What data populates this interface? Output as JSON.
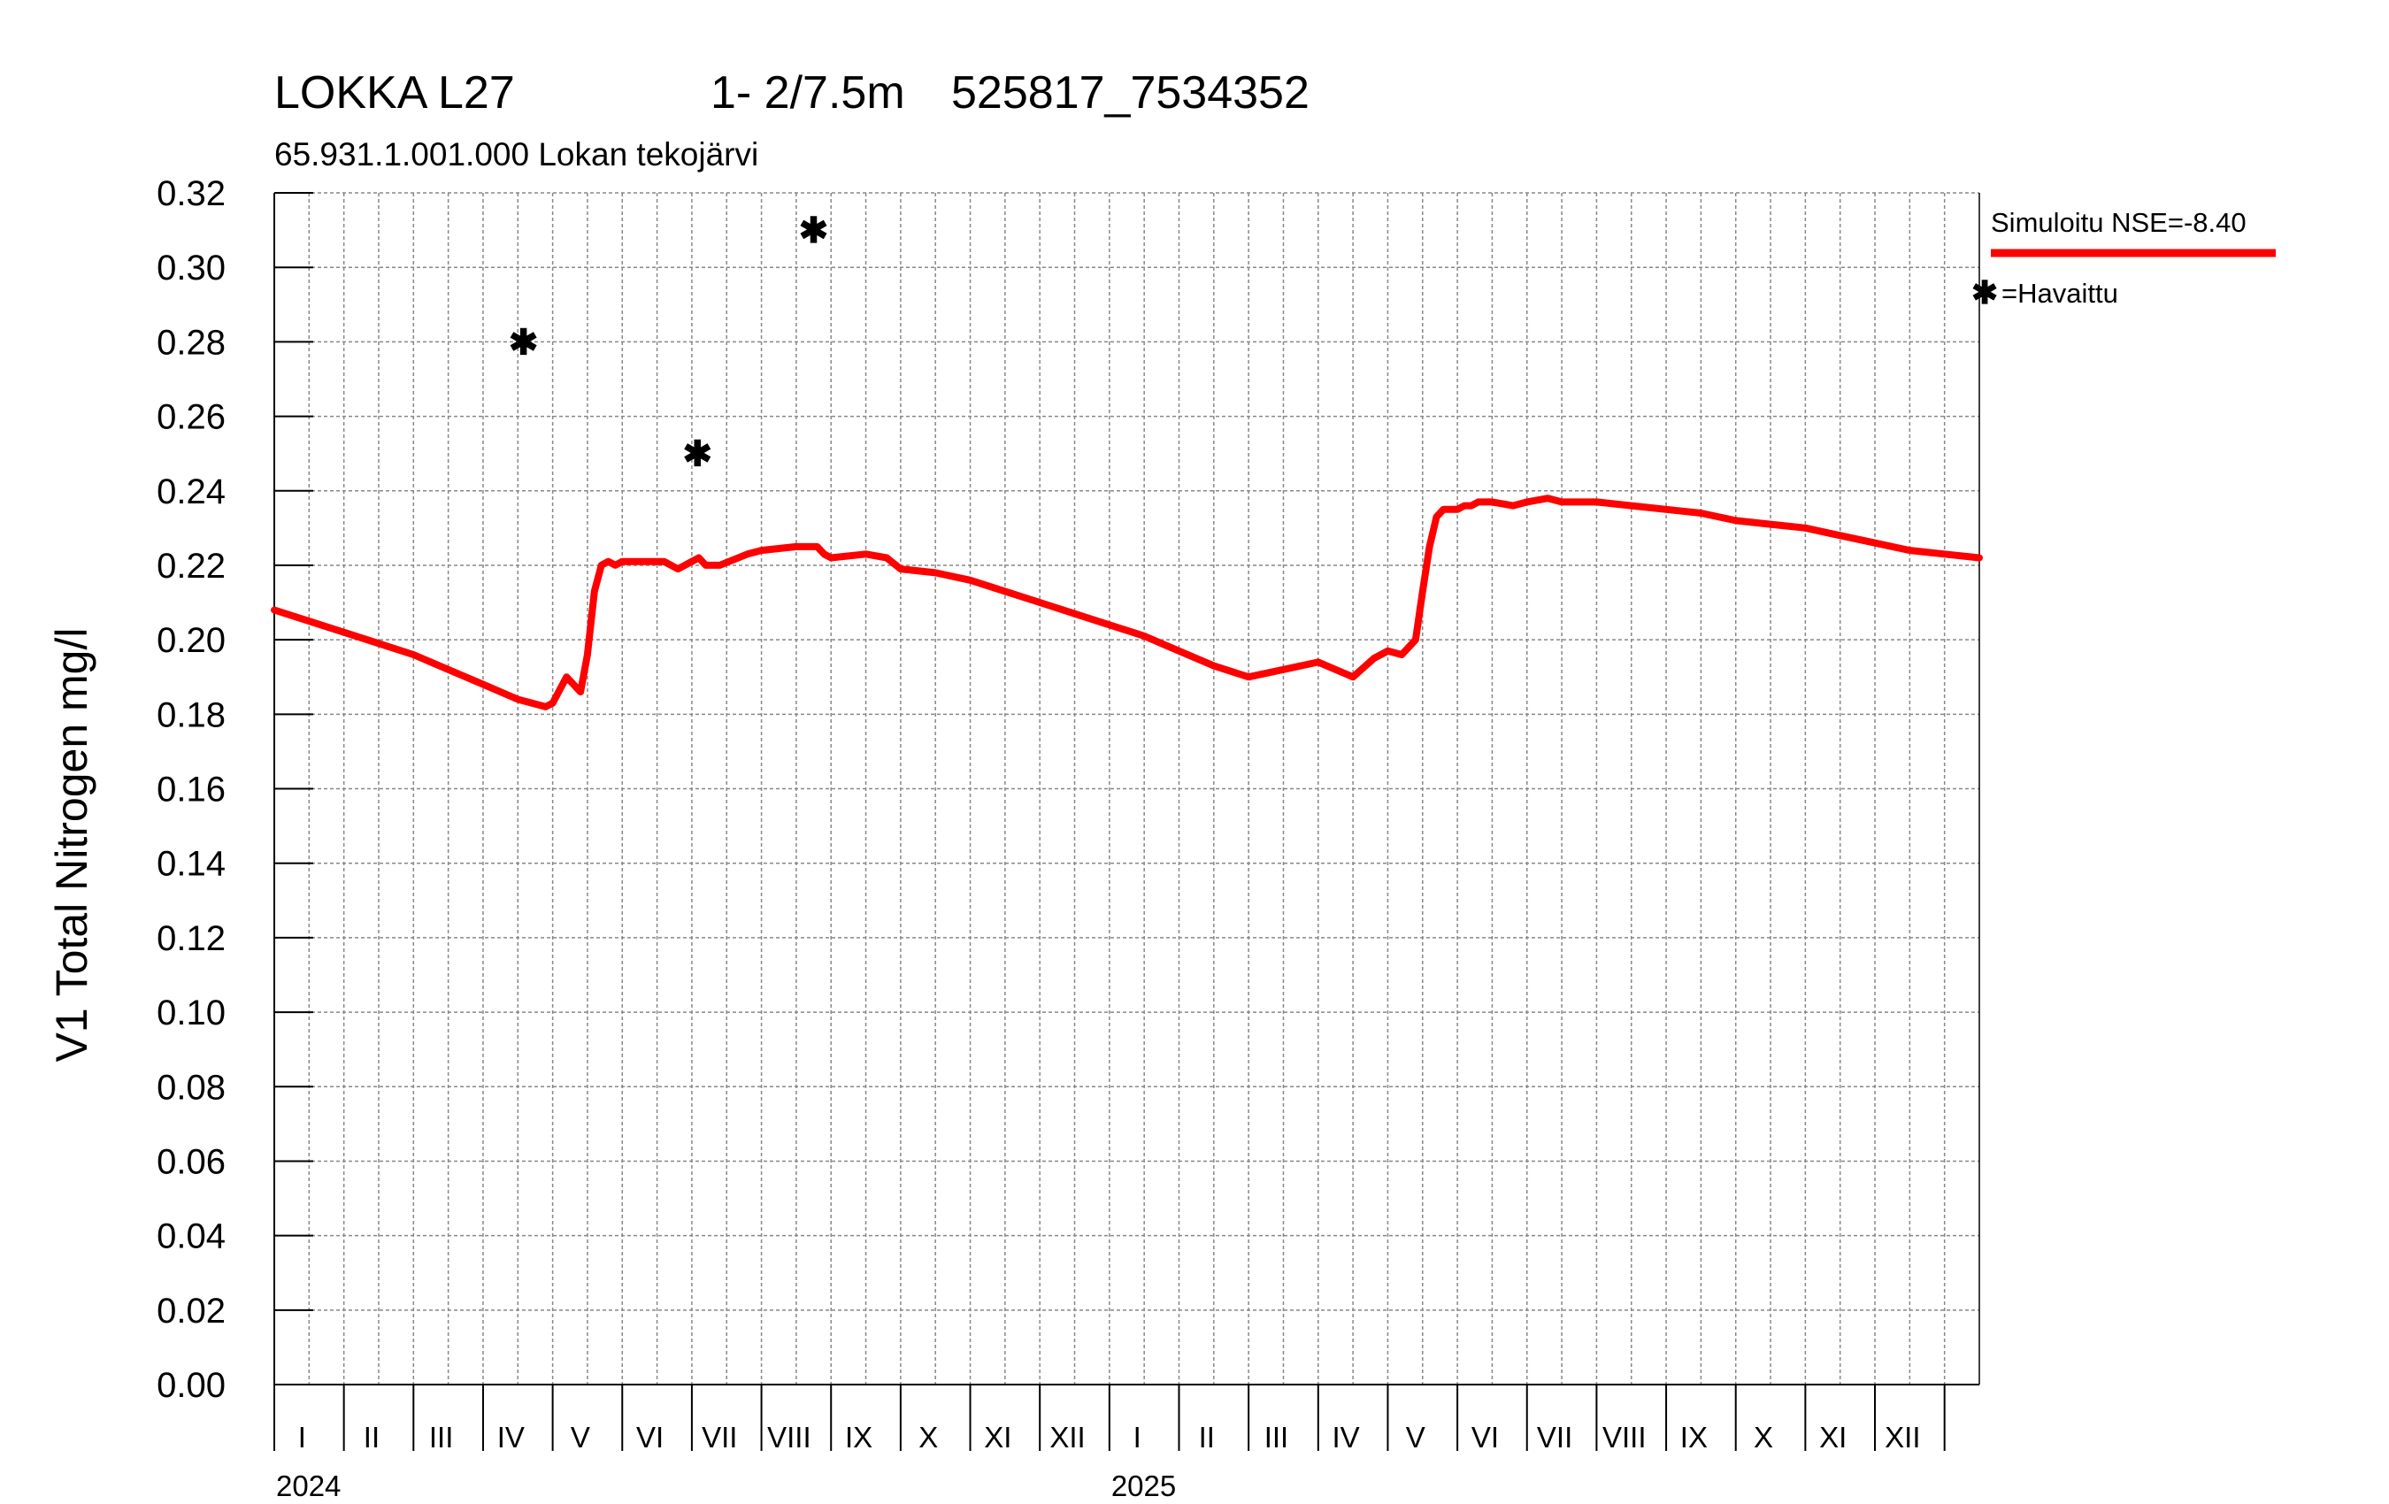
{
  "header": {
    "station": "LOKKA L27",
    "depth": "1- 2/7.5m",
    "coords": "525817_7534352",
    "subtitle": "65.931.1.001.000 Lokan tekojärvi"
  },
  "legend": {
    "simulated_label": "Simuloitu NSE=-8.40",
    "observed_label": "=Havaittu",
    "observed_marker": "✱"
  },
  "colors": {
    "simulated": "#ff0000",
    "observed": "#000000",
    "grid": "#888888"
  },
  "chart_data": {
    "type": "line",
    "ylabel": "V1 Total Nitrogen mg/l",
    "ylim": [
      0,
      0.32
    ],
    "yticks": [
      "0.00",
      "0.02",
      "0.04",
      "0.06",
      "0.08",
      "0.10",
      "0.12",
      "0.14",
      "0.16",
      "0.18",
      "0.20",
      "0.22",
      "0.24",
      "0.26",
      "0.28",
      "0.30",
      "0.32"
    ],
    "xlim": [
      0,
      24.5
    ],
    "months": [
      "I",
      "II",
      "III",
      "IV",
      "V",
      "VI",
      "VII",
      "VIII",
      "IX",
      "X",
      "XI",
      "XII",
      "I",
      "II",
      "III",
      "IV",
      "V",
      "VI",
      "VII",
      "VIII",
      "IX",
      "X",
      "XI",
      "XII"
    ],
    "years": [
      {
        "label": "2024",
        "month_index": 0
      },
      {
        "label": "2025",
        "month_index": 12
      }
    ],
    "grid": true,
    "legend_position": "right",
    "series": [
      {
        "name": "Simuloitu NSE=-8.40",
        "type": "line",
        "x": [
          0,
          0.5,
          1,
          1.5,
          2,
          2.5,
          3,
          3.5,
          3.9,
          4.0,
          4.2,
          4.4,
          4.5,
          4.6,
          4.7,
          4.8,
          4.9,
          5.0,
          5.2,
          5.6,
          5.8,
          6.0,
          6.1,
          6.2,
          6.4,
          6.8,
          7.0,
          7.5,
          7.8,
          7.9,
          8.0,
          8.5,
          8.8,
          9.0,
          9.5,
          10,
          10.5,
          11,
          11.5,
          12,
          12.5,
          13,
          13.5,
          14,
          14.5,
          15,
          15.5,
          15.8,
          16.0,
          16.2,
          16.4,
          16.5,
          16.6,
          16.7,
          16.8,
          16.9,
          17.0,
          17.1,
          17.2,
          17.3,
          17.5,
          17.8,
          18.0,
          18.3,
          18.5,
          18.8,
          19.0,
          19.5,
          20.0,
          20.5,
          21.0,
          21.5,
          22.0,
          22.5,
          23.0,
          23.5,
          24.0,
          24.5
        ],
        "y": [
          0.208,
          0.205,
          0.202,
          0.199,
          0.196,
          0.192,
          0.188,
          0.184,
          0.182,
          0.183,
          0.19,
          0.186,
          0.196,
          0.213,
          0.22,
          0.221,
          0.22,
          0.221,
          0.221,
          0.221,
          0.219,
          0.221,
          0.222,
          0.22,
          0.22,
          0.223,
          0.224,
          0.225,
          0.225,
          0.223,
          0.222,
          0.223,
          0.222,
          0.219,
          0.218,
          0.216,
          0.213,
          0.21,
          0.207,
          0.204,
          0.201,
          0.197,
          0.193,
          0.19,
          0.192,
          0.194,
          0.19,
          0.195,
          0.197,
          0.196,
          0.2,
          0.213,
          0.225,
          0.233,
          0.235,
          0.235,
          0.235,
          0.236,
          0.236,
          0.237,
          0.237,
          0.236,
          0.237,
          0.238,
          0.237,
          0.237,
          0.237,
          0.236,
          0.235,
          0.234,
          0.232,
          0.231,
          0.23,
          0.228,
          0.226,
          0.224,
          0.223,
          0.222
        ]
      },
      {
        "name": "Havaittu",
        "type": "scatter",
        "x": [
          3.58,
          6.08,
          7.75
        ],
        "y": [
          0.28,
          0.25,
          0.31
        ]
      }
    ]
  }
}
